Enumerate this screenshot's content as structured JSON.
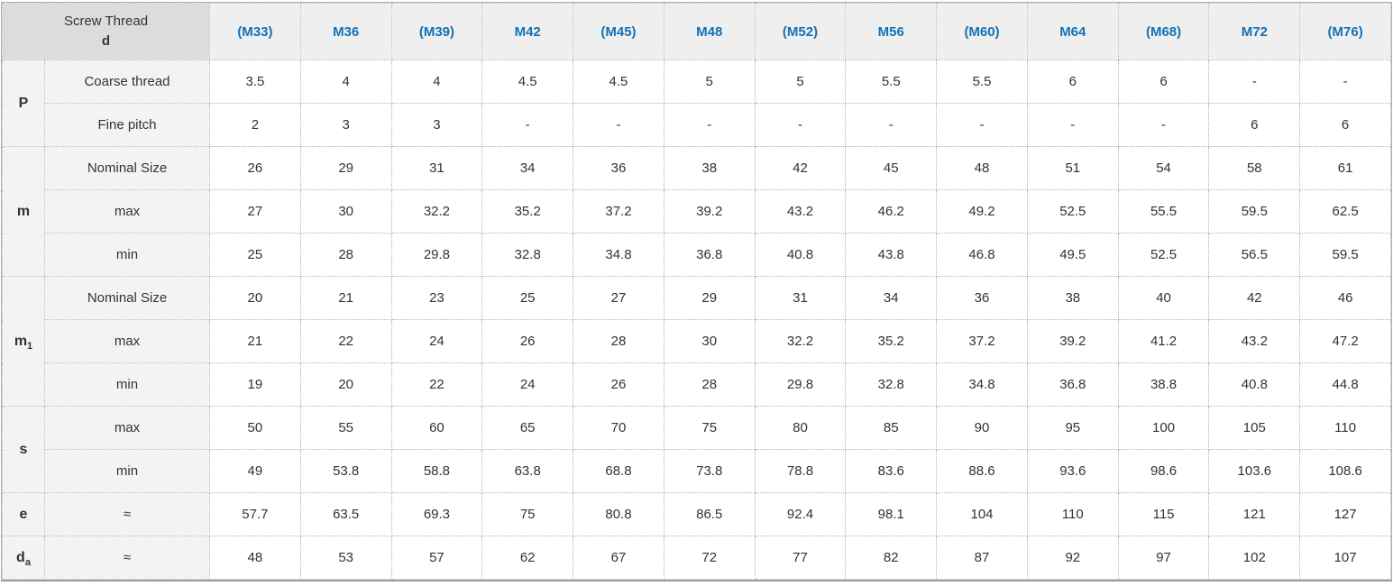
{
  "table": {
    "corner": {
      "line1": "Screw Thread",
      "line2": "d"
    },
    "accent_color": "#1271b7",
    "columns": [
      "(M33)",
      "M36",
      "(M39)",
      "M42",
      "(M45)",
      "M48",
      "(M52)",
      "M56",
      "(M60)",
      "M64",
      "(M68)",
      "M72",
      "(M76)"
    ],
    "groups": [
      {
        "label": {
          "base": "P",
          "sub": ""
        },
        "rows": [
          {
            "name": "Coarse thread",
            "values": [
              "3.5",
              "4",
              "4",
              "4.5",
              "4.5",
              "5",
              "5",
              "5.5",
              "5.5",
              "6",
              "6",
              "-",
              "-"
            ]
          },
          {
            "name": "Fine pitch",
            "values": [
              "2",
              "3",
              "3",
              "-",
              "-",
              "-",
              "-",
              "-",
              "-",
              "-",
              "-",
              "6",
              "6"
            ]
          }
        ]
      },
      {
        "label": {
          "base": "m",
          "sub": ""
        },
        "rows": [
          {
            "name": "Nominal Size",
            "values": [
              "26",
              "29",
              "31",
              "34",
              "36",
              "38",
              "42",
              "45",
              "48",
              "51",
              "54",
              "58",
              "61"
            ]
          },
          {
            "name": "max",
            "values": [
              "27",
              "30",
              "32.2",
              "35.2",
              "37.2",
              "39.2",
              "43.2",
              "46.2",
              "49.2",
              "52.5",
              "55.5",
              "59.5",
              "62.5"
            ]
          },
          {
            "name": "min",
            "values": [
              "25",
              "28",
              "29.8",
              "32.8",
              "34.8",
              "36.8",
              "40.8",
              "43.8",
              "46.8",
              "49.5",
              "52.5",
              "56.5",
              "59.5"
            ]
          }
        ]
      },
      {
        "label": {
          "base": "m",
          "sub": "1"
        },
        "rows": [
          {
            "name": "Nominal Size",
            "values": [
              "20",
              "21",
              "23",
              "25",
              "27",
              "29",
              "31",
              "34",
              "36",
              "38",
              "40",
              "42",
              "46"
            ]
          },
          {
            "name": "max",
            "values": [
              "21",
              "22",
              "24",
              "26",
              "28",
              "30",
              "32.2",
              "35.2",
              "37.2",
              "39.2",
              "41.2",
              "43.2",
              "47.2"
            ]
          },
          {
            "name": "min",
            "values": [
              "19",
              "20",
              "22",
              "24",
              "26",
              "28",
              "29.8",
              "32.8",
              "34.8",
              "36.8",
              "38.8",
              "40.8",
              "44.8"
            ]
          }
        ]
      },
      {
        "label": {
          "base": "s",
          "sub": ""
        },
        "rows": [
          {
            "name": "max",
            "values": [
              "50",
              "55",
              "60",
              "65",
              "70",
              "75",
              "80",
              "85",
              "90",
              "95",
              "100",
              "105",
              "110"
            ]
          },
          {
            "name": "min",
            "values": [
              "49",
              "53.8",
              "58.8",
              "63.8",
              "68.8",
              "73.8",
              "78.8",
              "83.6",
              "88.6",
              "93.6",
              "98.6",
              "103.6",
              "108.6"
            ]
          }
        ]
      },
      {
        "label": {
          "base": "e",
          "sub": ""
        },
        "rows": [
          {
            "name": "≈",
            "values": [
              "57.7",
              "63.5",
              "69.3",
              "75",
              "80.8",
              "86.5",
              "92.4",
              "98.1",
              "104",
              "110",
              "115",
              "121",
              "127"
            ]
          }
        ]
      },
      {
        "label": {
          "base": "d",
          "sub": "a"
        },
        "rows": [
          {
            "name": "≈",
            "values": [
              "48",
              "53",
              "57",
              "62",
              "67",
              "72",
              "77",
              "82",
              "87",
              "92",
              "97",
              "102",
              "107"
            ]
          }
        ]
      }
    ]
  }
}
